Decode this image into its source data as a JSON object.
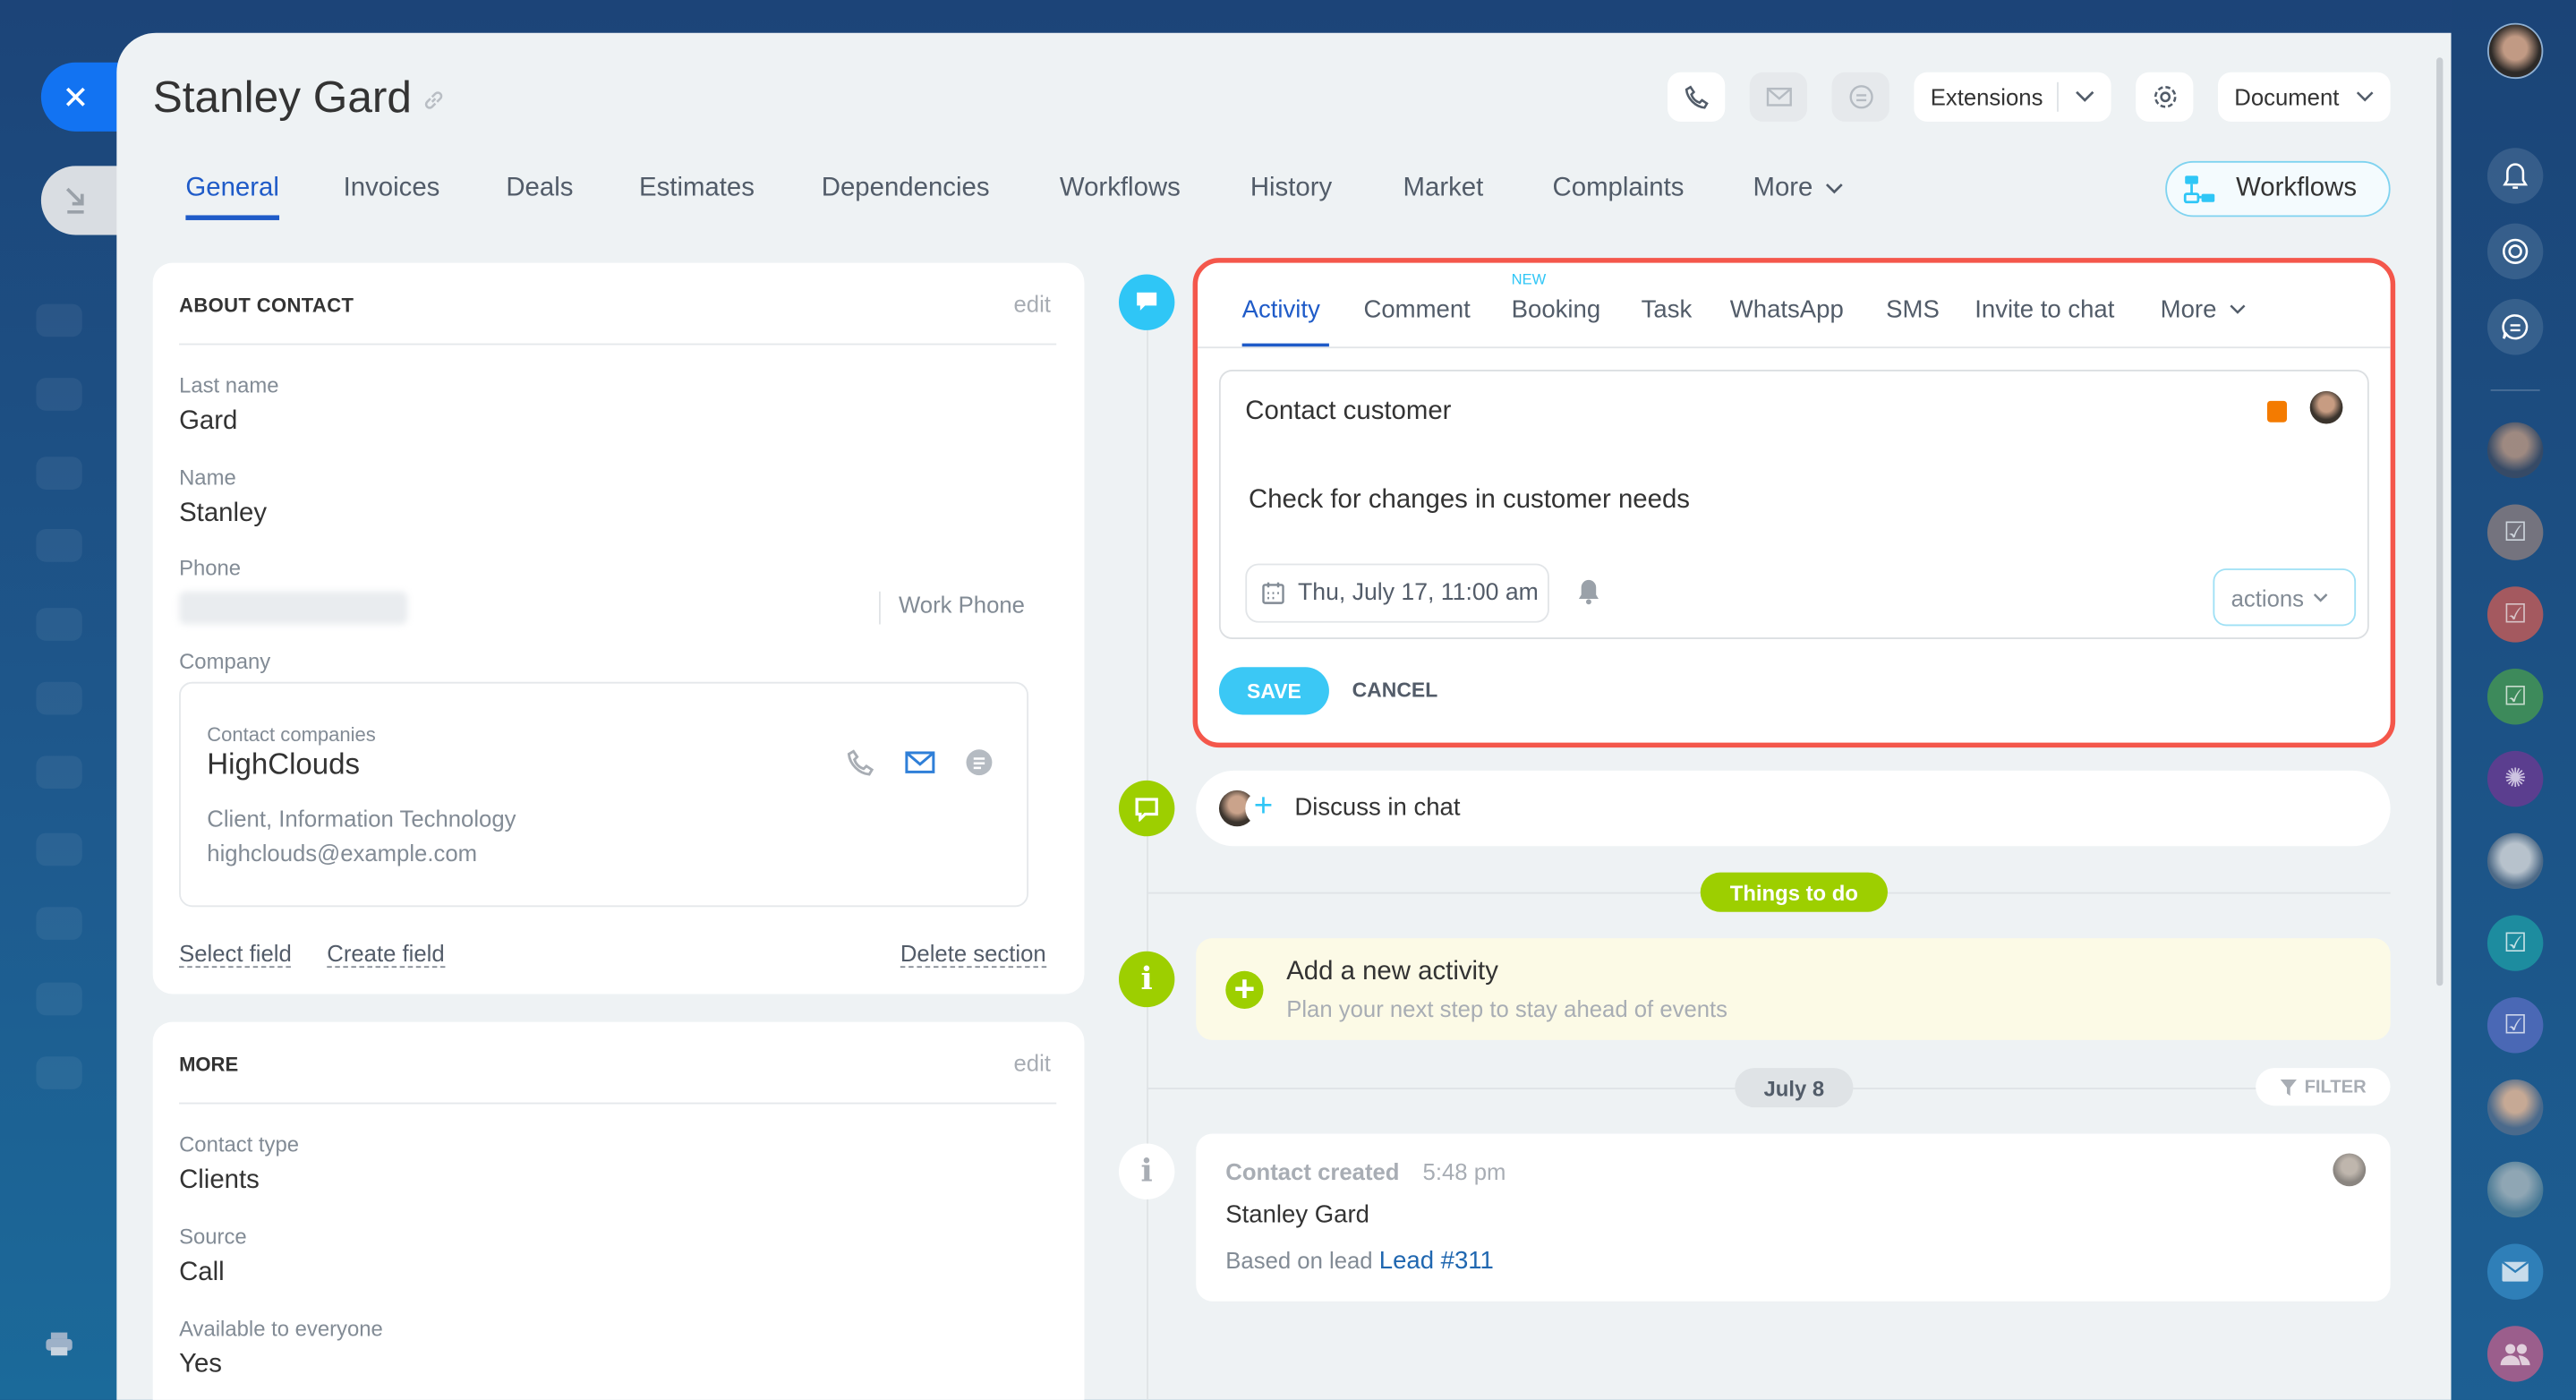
{
  "header": {
    "title": "Stanley Gard",
    "extensions_label": "Extensions",
    "document_label": "Document",
    "workflows_button": "Workflows"
  },
  "tabs": [
    "General",
    "Invoices",
    "Deals",
    "Estimates",
    "Dependencies",
    "Workflows",
    "History",
    "Market",
    "Complaints",
    "More"
  ],
  "active_tab": "General",
  "about": {
    "title": "ABOUT CONTACT",
    "edit": "edit",
    "fields": [
      {
        "label": "Last name",
        "value": "Gard"
      },
      {
        "label": "Name",
        "value": "Stanley"
      },
      {
        "label": "Phone",
        "value": "",
        "type": "Work Phone"
      },
      {
        "label": "Company"
      }
    ],
    "company": {
      "caption": "Contact companies",
      "name": "HighClouds",
      "details": "Client, Information Technology",
      "email": "highclouds@example.com"
    },
    "links": {
      "select": "Select field",
      "create": "Create field",
      "delete": "Delete section"
    }
  },
  "more_section": {
    "title": "MORE",
    "edit": "edit",
    "fields": [
      {
        "label": "Contact type",
        "value": "Clients"
      },
      {
        "label": "Source",
        "value": "Call"
      },
      {
        "label": "Available to everyone",
        "value": "Yes"
      }
    ]
  },
  "editor": {
    "tabs": [
      "Activity",
      "Comment",
      "Booking",
      "Task",
      "WhatsApp",
      "SMS",
      "Invite to chat",
      "More"
    ],
    "active_tab": "Activity",
    "new_badge": "NEW",
    "title": "Contact customer",
    "description": "Check for changes in customer needs",
    "deadline": "Thu, July 17, 11:00 am",
    "actions": "actions",
    "save": "SAVE",
    "cancel": "CANCEL",
    "highlight_color": "#f4574b"
  },
  "timeline": {
    "discuss": "Discuss in chat",
    "things_to_do": "Things to do",
    "add_title": "Add a new activity",
    "add_subtitle": "Plan your next step to stay ahead of events",
    "date_label": "July 8",
    "filter": "FILTER",
    "event": {
      "title": "Contact created",
      "time": "5:48 pm",
      "name": "Stanley Gard",
      "based_on": "Based on lead",
      "lead_link": "Lead #311"
    }
  },
  "colors": {
    "accent": "#2fc6f6",
    "active_tab": "#1f5bc8",
    "green": "#9dcf00",
    "link": "#2067b0"
  }
}
